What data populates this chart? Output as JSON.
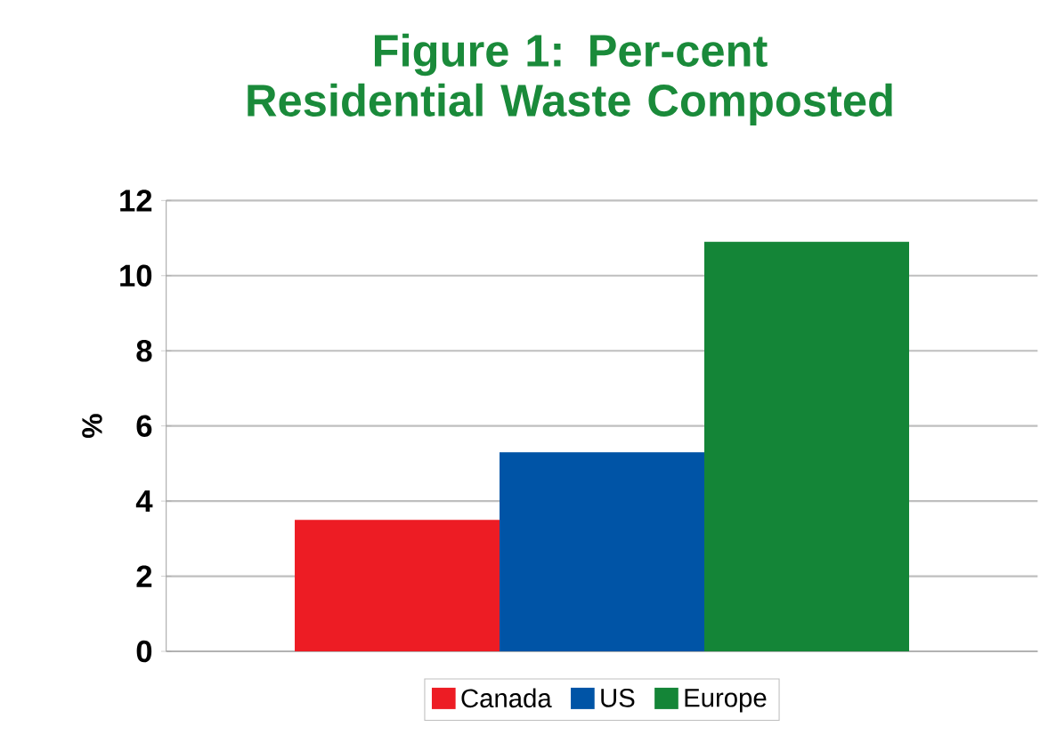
{
  "chart_data": {
    "type": "bar",
    "title": "Figure 1: Per-cent Residential Waste Composted",
    "ylabel": "%",
    "categories": [
      null
    ],
    "series": [
      {
        "name": "Canada",
        "color": "#ed1c24",
        "values": [
          3.5
        ]
      },
      {
        "name": "US",
        "color": "#0054a6",
        "values": [
          5.3
        ]
      },
      {
        "name": "Europe",
        "color": "#148537",
        "values": [
          10.9
        ]
      }
    ],
    "ylim": [
      0,
      12
    ],
    "yticks": [
      0,
      2,
      4,
      6,
      8,
      10,
      12
    ],
    "grid": "y",
    "legend": "bottom"
  }
}
